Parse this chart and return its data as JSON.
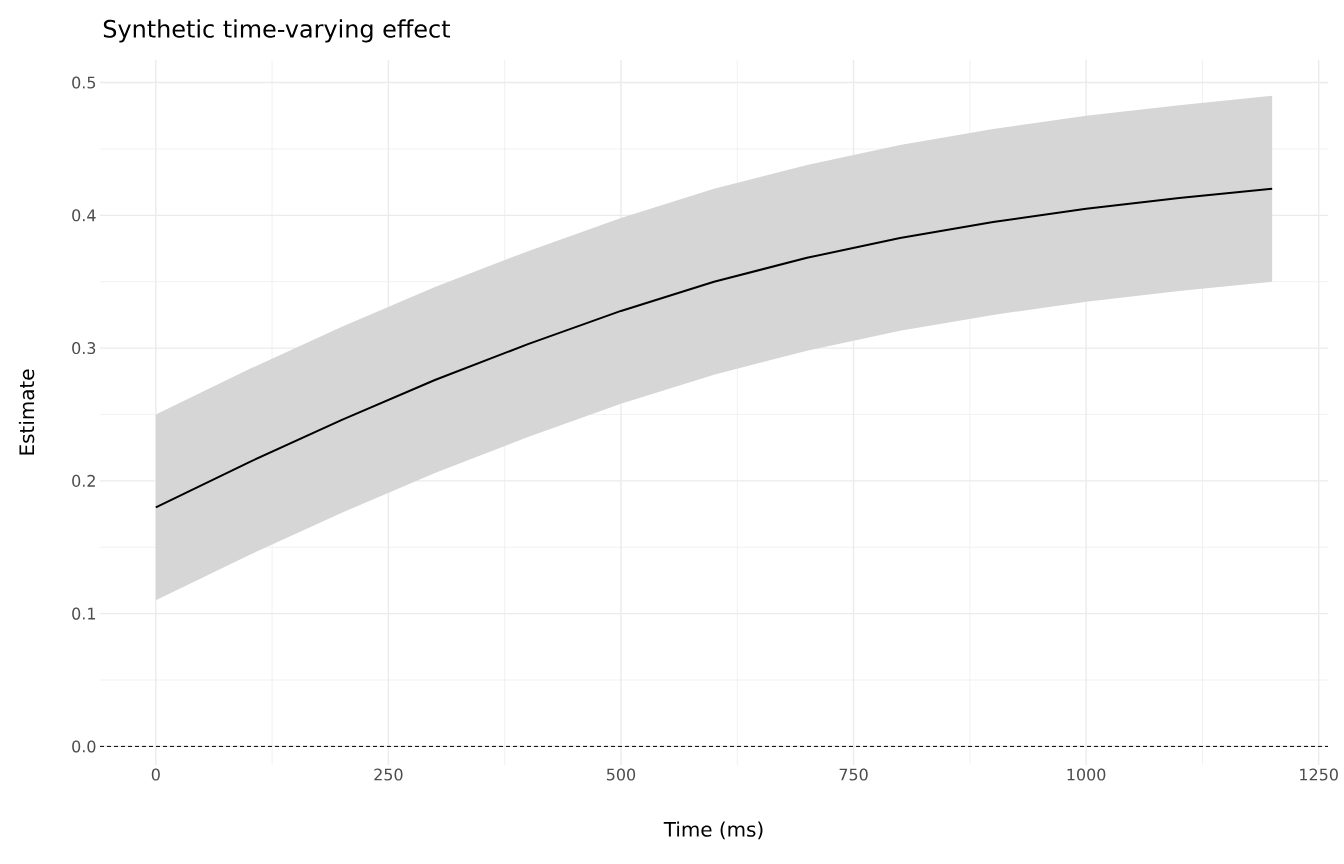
{
  "chart_data": {
    "type": "line",
    "title": "Synthetic time-varying effect",
    "xlabel": "Time (ms)",
    "ylabel": "Estimate",
    "x": [
      0,
      100,
      200,
      300,
      400,
      500,
      600,
      700,
      800,
      900,
      1000,
      1100,
      1200
    ],
    "series": [
      {
        "color": "#000000",
        "values": [
          0.18,
          0.214,
          0.246,
          0.276,
          0.303,
          0.328,
          0.35,
          0.368,
          0.383,
          0.395,
          0.405,
          0.413,
          0.42
        ],
        "lower": [
          0.11,
          0.144,
          0.176,
          0.206,
          0.233,
          0.258,
          0.28,
          0.298,
          0.313,
          0.325,
          0.335,
          0.343,
          0.35
        ],
        "upper": [
          0.25,
          0.284,
          0.316,
          0.346,
          0.373,
          0.398,
          0.42,
          0.438,
          0.453,
          0.465,
          0.475,
          0.483,
          0.49
        ]
      }
    ],
    "xlim": [
      -60,
      1260
    ],
    "ylim": [
      -0.014,
      0.517
    ],
    "xticks": [
      0,
      250,
      500,
      750,
      1000,
      1250
    ],
    "yticks": [
      {
        "value": 0,
        "label": "0.0"
      },
      0.1,
      0.2,
      0.3,
      0.4,
      0.5
    ],
    "ref_lines": [
      {
        "axis": "y",
        "value": 0,
        "color": "#000000",
        "line_style": "dashed"
      }
    ],
    "grid": true,
    "marker": "none",
    "line_style": "solid"
  }
}
